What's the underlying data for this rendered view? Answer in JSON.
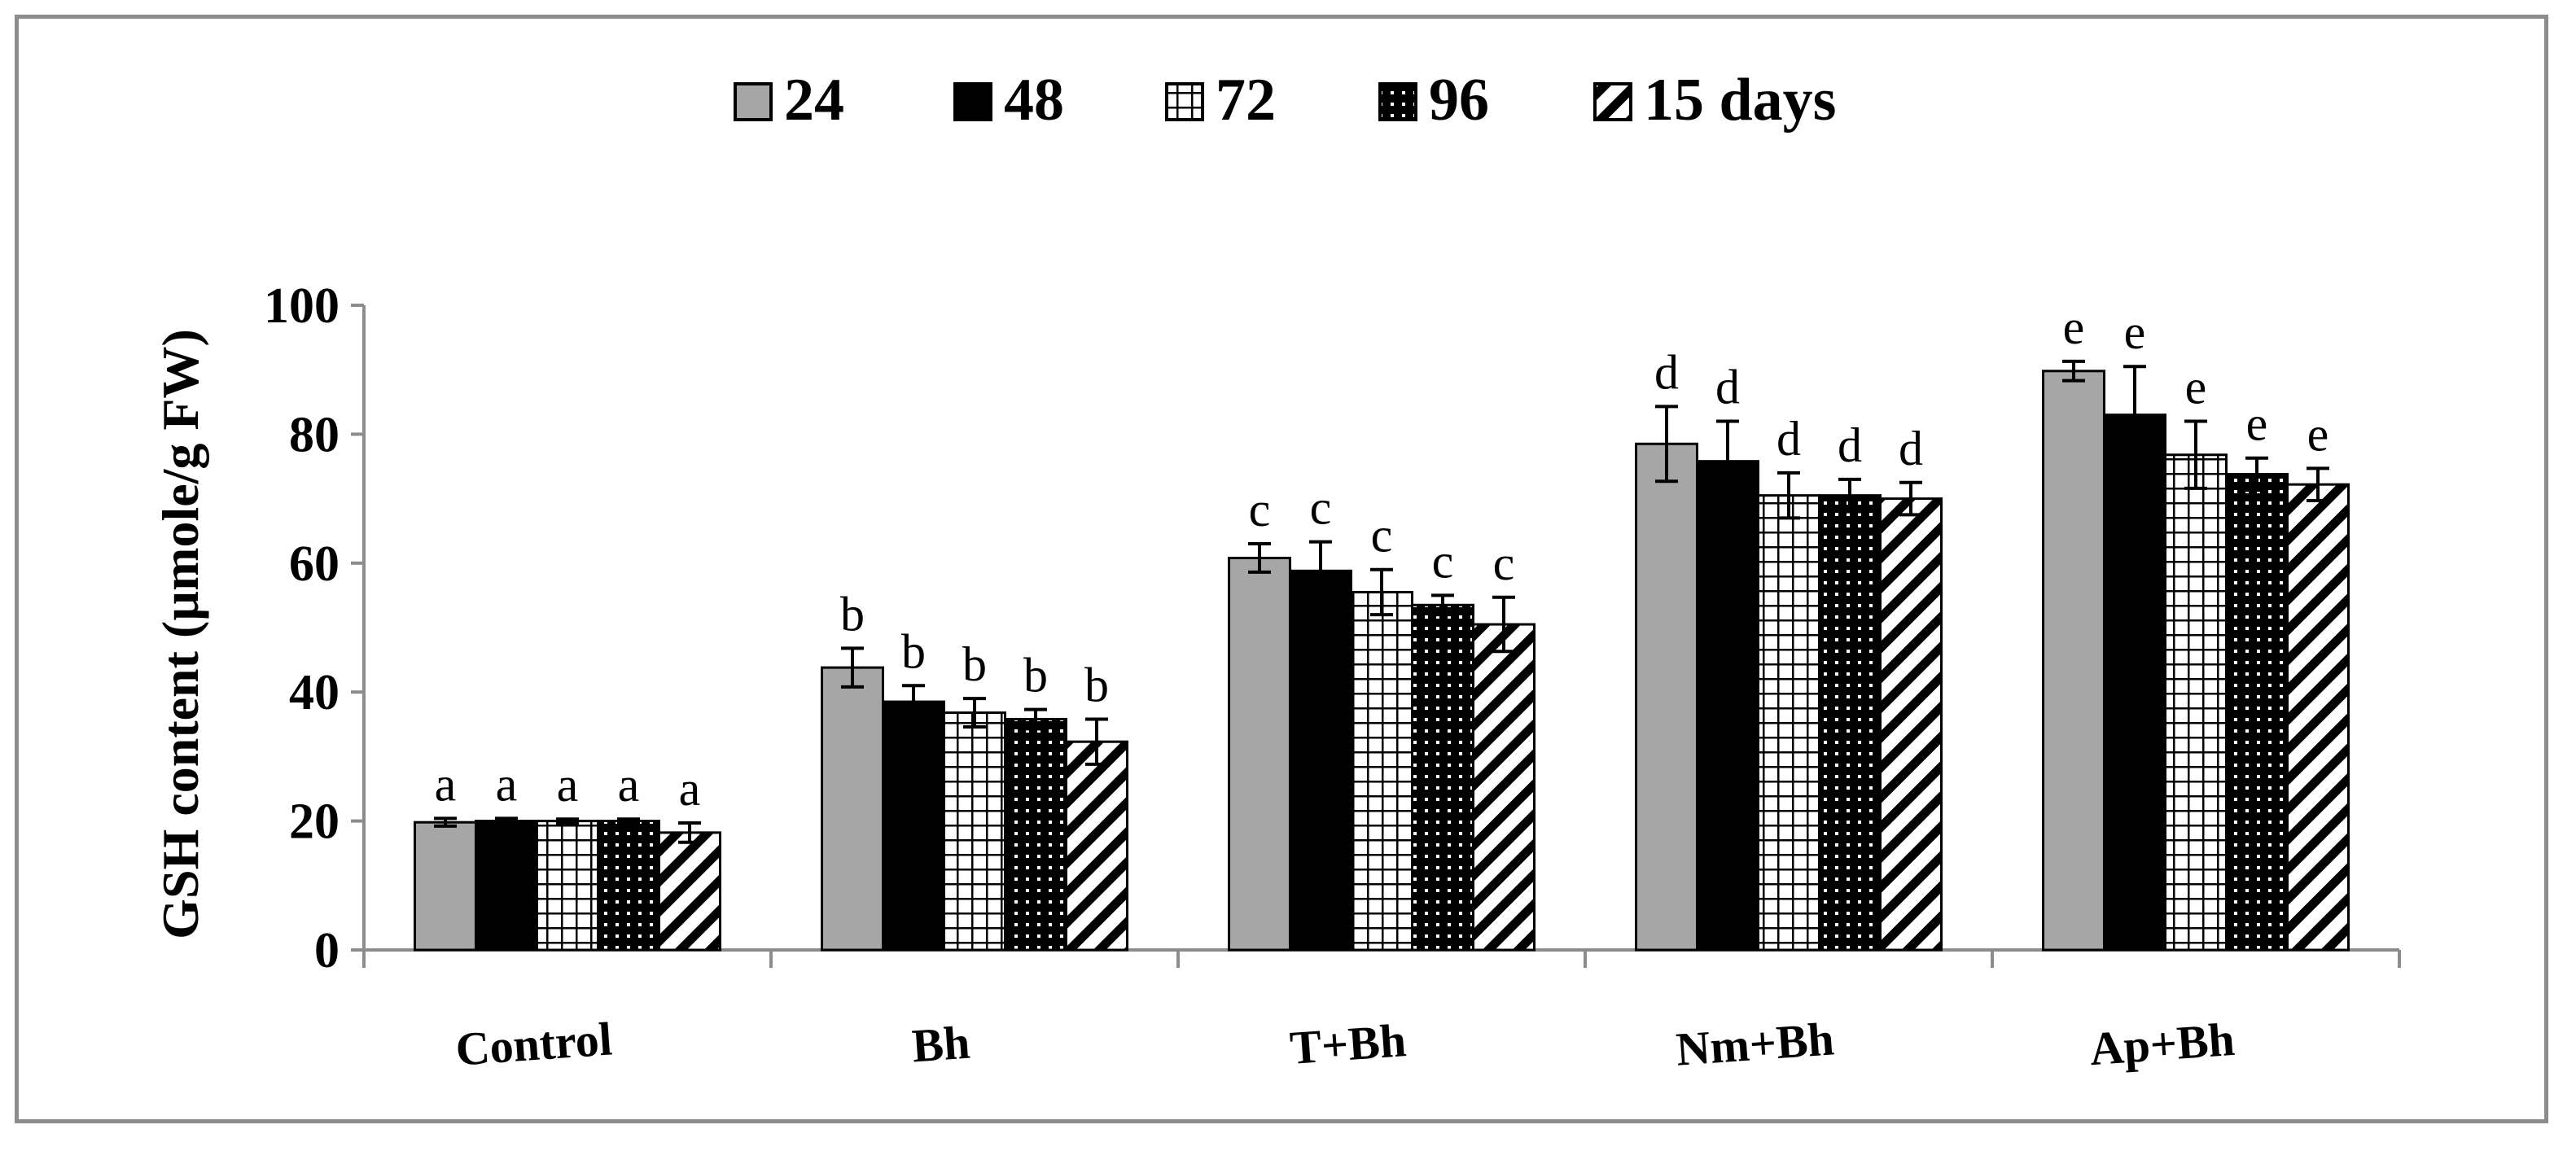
{
  "chart_data": {
    "type": "bar",
    "title": "",
    "xlabel": "",
    "ylabel": "GSH content (µmole/g FW)",
    "ylim": [
      0,
      100
    ],
    "yticks": [
      "0",
      "20",
      "40",
      "60",
      "80",
      "100"
    ],
    "legend_position": "top",
    "grid": false,
    "categories": [
      "Control",
      "Bh",
      "T+Bh",
      "Nm+Bh",
      "Ap+Bh"
    ],
    "series": [
      {
        "name": "24",
        "pattern": "solid-gray",
        "fill": "#a6a6a6",
        "values": [
          19.8,
          43.8,
          60.8,
          78.5,
          89.8
        ],
        "errors": [
          0.6,
          3.0,
          2.2,
          5.8,
          1.5
        ],
        "letters": [
          "a",
          "b",
          "c",
          "d",
          "e"
        ]
      },
      {
        "name": "48",
        "pattern": "solid-black",
        "fill": "#000000",
        "values": [
          20.0,
          38.5,
          58.8,
          75.8,
          83.0
        ],
        "errors": [
          0.4,
          2.5,
          4.5,
          6.2,
          7.5
        ],
        "letters": [
          "a",
          "b",
          "c",
          "d",
          "e"
        ]
      },
      {
        "name": "72",
        "pattern": "grid",
        "fill": "#ffffff",
        "values": [
          20.0,
          36.8,
          55.5,
          70.5,
          76.8
        ],
        "errors": [
          0.3,
          2.2,
          3.5,
          3.5,
          5.2
        ],
        "letters": [
          "a",
          "b",
          "c",
          "d",
          "e"
        ]
      },
      {
        "name": "96",
        "pattern": "dots",
        "fill": "#000000",
        "values": [
          20.0,
          35.8,
          53.5,
          70.5,
          73.8
        ],
        "errors": [
          0.3,
          1.5,
          1.5,
          2.5,
          2.5
        ],
        "letters": [
          "a",
          "b",
          "c",
          "d",
          "e"
        ]
      },
      {
        "name": "15 days",
        "pattern": "diagonal",
        "fill": "#ffffff",
        "values": [
          18.2,
          32.3,
          50.5,
          70.0,
          72.2
        ],
        "errors": [
          1.5,
          3.5,
          4.2,
          2.5,
          2.5
        ],
        "letters": [
          "a",
          "b",
          "c",
          "d",
          "e"
        ]
      }
    ]
  }
}
